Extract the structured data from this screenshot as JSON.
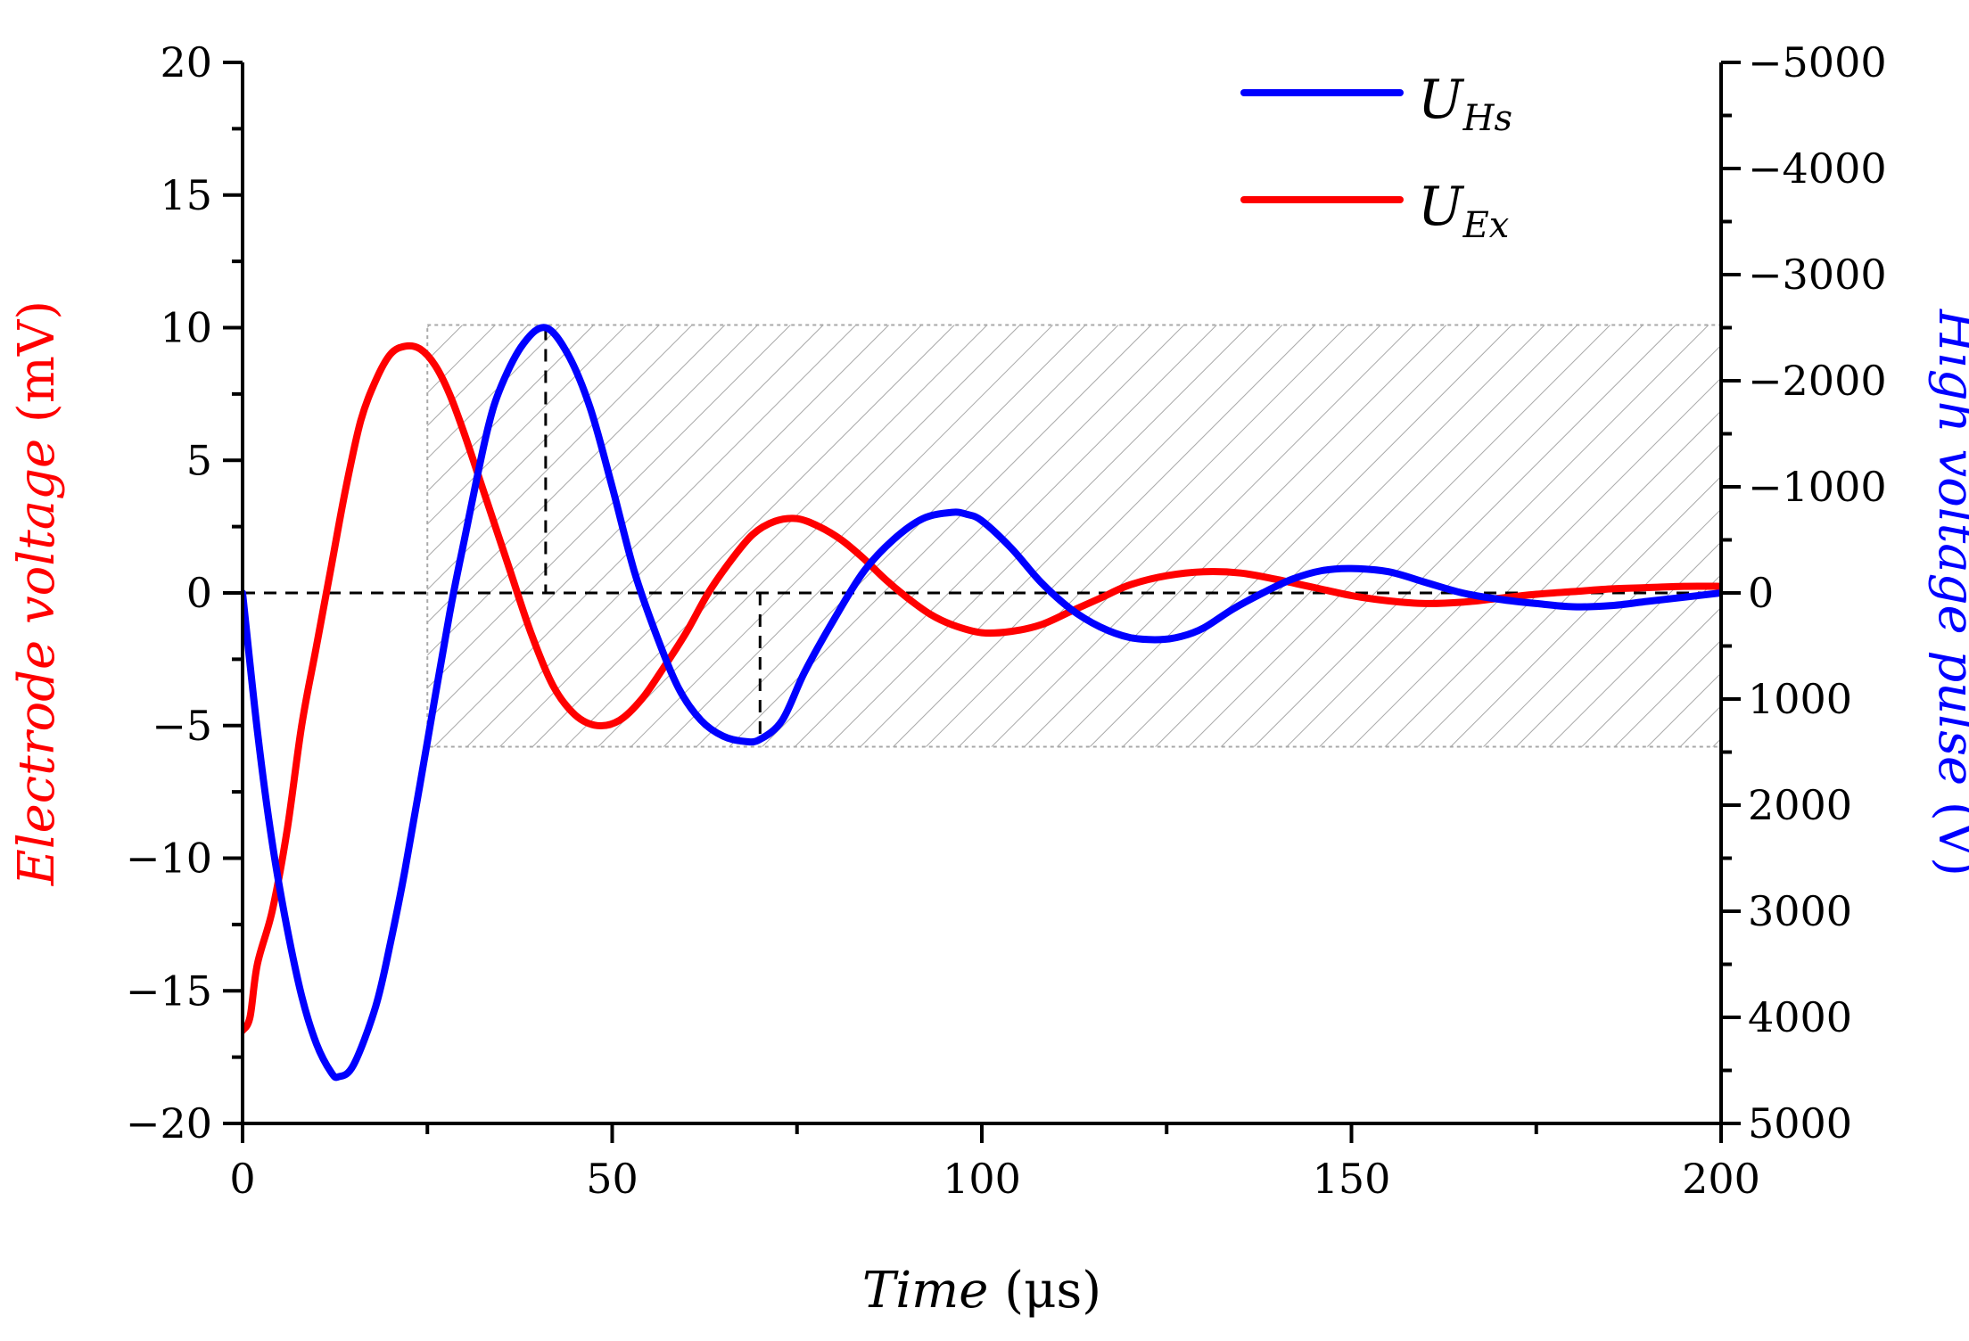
{
  "chart_data": {
    "type": "line",
    "x_axis": {
      "label_italic": "Time",
      "label_unit": " (μs)",
      "range": [
        0,
        200
      ],
      "ticks": [
        0,
        50,
        100,
        150,
        200
      ],
      "tick_labels": [
        "0",
        "50",
        "100",
        "150",
        "200"
      ],
      "minor_step": 25
    },
    "y_left": {
      "label_italic": "Electrode voltage",
      "label_unit": " (mV)",
      "color": "#ff0000",
      "range": [
        -20,
        20
      ],
      "ticks": [
        20,
        15,
        10,
        5,
        0,
        -5,
        -10,
        -15,
        -20
      ],
      "tick_labels": [
        "20",
        "15",
        "10",
        "5",
        "0",
        "−5",
        "−10",
        "−15",
        "−20"
      ],
      "minor_step": 2.5
    },
    "y_right": {
      "label_italic": "High voltage pulse",
      "label_unit": " (V)",
      "color": "#0000ff",
      "range_top_to_bottom": [
        -5000,
        5000
      ],
      "ticks": [
        -5000,
        -4000,
        -3000,
        -2000,
        -1000,
        0,
        1000,
        2000,
        3000,
        4000,
        5000
      ],
      "tick_labels": [
        "−5000",
        "−4000",
        "−3000",
        "−2000",
        "−1000",
        "0",
        "1000",
        "2000",
        "3000",
        "4000",
        "5000"
      ],
      "minor_step": 500
    },
    "series": [
      {
        "name": "U_Hs",
        "legend_main": "U",
        "legend_sub": "Hs",
        "color": "#0000ff",
        "axis": "right",
        "x": [
          0,
          2,
          4,
          6,
          8,
          10,
          12,
          13,
          15,
          18,
          20,
          22,
          25,
          28,
          30,
          33,
          35,
          38,
          41,
          44,
          47,
          50,
          53,
          56,
          59,
          62,
          65,
          68,
          70,
          73,
          76,
          80,
          84,
          88,
          92,
          96,
          98,
          100,
          104,
          108,
          112,
          116,
          120,
          124,
          127,
          130,
          134,
          138,
          142,
          146,
          150,
          155,
          160,
          165,
          170,
          175,
          180,
          185,
          190,
          195,
          200
        ],
        "values": [
          0,
          1300,
          2350,
          3150,
          3800,
          4250,
          4520,
          4560,
          4450,
          3900,
          3300,
          2600,
          1400,
          200,
          -500,
          -1500,
          -1950,
          -2350,
          -2500,
          -2250,
          -1750,
          -1000,
          -200,
          400,
          900,
          1200,
          1350,
          1400,
          1380,
          1200,
          750,
          250,
          -200,
          -500,
          -700,
          -760,
          -740,
          -680,
          -420,
          -100,
          150,
          320,
          420,
          440,
          410,
          330,
          150,
          0,
          -130,
          -210,
          -230,
          -200,
          -100,
          0,
          60,
          100,
          130,
          120,
          80,
          40,
          0
        ]
      },
      {
        "name": "U_Ex",
        "legend_main": "U",
        "legend_sub": "Ex",
        "color": "#ff0000",
        "axis": "left",
        "x": [
          0,
          1,
          2,
          4,
          6,
          8,
          10,
          12,
          14,
          16,
          18,
          20,
          22,
          24,
          26,
          28,
          30,
          33,
          36,
          39,
          42,
          45,
          48,
          51,
          54,
          57,
          60,
          63,
          66,
          69,
          72,
          75,
          78,
          81,
          84,
          87,
          90,
          93,
          96,
          100,
          104,
          108,
          112,
          116,
          120,
          125,
          130,
          135,
          140,
          145,
          150,
          155,
          160,
          165,
          170,
          175,
          180,
          185,
          190,
          195,
          200
        ],
        "values": [
          -16.5,
          -16.0,
          -14.0,
          -12.0,
          -9.0,
          -5.0,
          -2.0,
          1.0,
          4.0,
          6.5,
          8.0,
          9.0,
          9.3,
          9.2,
          8.6,
          7.5,
          6.0,
          3.5,
          1.0,
          -1.5,
          -3.5,
          -4.6,
          -5.0,
          -4.8,
          -4.0,
          -2.8,
          -1.5,
          0.0,
          1.2,
          2.2,
          2.7,
          2.8,
          2.5,
          2.0,
          1.3,
          0.5,
          -0.2,
          -0.8,
          -1.2,
          -1.5,
          -1.45,
          -1.2,
          -0.7,
          -0.2,
          0.3,
          0.65,
          0.8,
          0.75,
          0.5,
          0.2,
          -0.1,
          -0.3,
          -0.4,
          -0.35,
          -0.2,
          -0.05,
          0.05,
          0.15,
          0.2,
          0.25,
          0.25
        ]
      }
    ],
    "annotations": {
      "zero_reference_line": 0,
      "hatched_region": {
        "x": [
          25,
          200
        ],
        "y_left": [
          -5.8,
          10.1
        ]
      },
      "guide_peak": {
        "x": 41,
        "y_left": 10
      },
      "guide_trough": {
        "x": 70,
        "y_left": -5.6
      }
    }
  }
}
